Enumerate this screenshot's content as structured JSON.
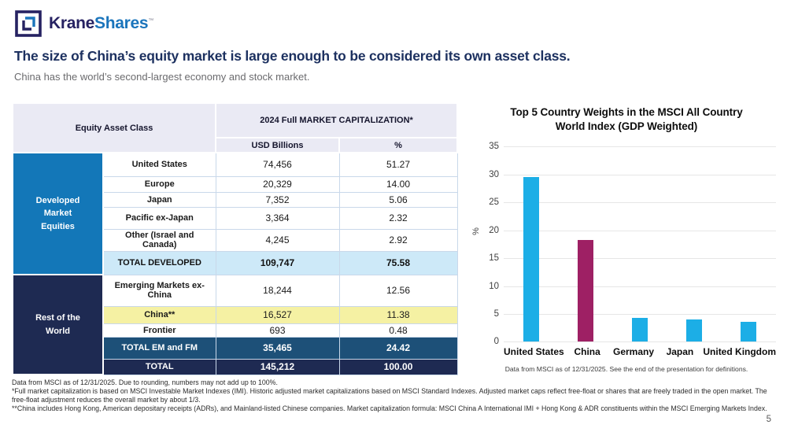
{
  "brand": {
    "name_primary": "Krane",
    "name_secondary": "Shares",
    "trademark": "™"
  },
  "header": {
    "title": "The size of China’s equity market is large enough to be considered its own asset class.",
    "subtitle": "China has the world’s second-largest economy and stock market."
  },
  "table": {
    "header": {
      "asset_class": "Equity Asset Class",
      "market_cap": "2024 Full MARKET CAPITALIZATION*",
      "usd": "USD Billions",
      "pct": "%"
    },
    "groups": [
      {
        "label": "Developed Market Equities",
        "color": "#1377b8",
        "rows": [
          {
            "label": "United States",
            "usd": "74,456",
            "pct": "51.27",
            "style": "normal"
          },
          {
            "label": "Europe",
            "usd": "20,329",
            "pct": "14.00",
            "style": "normal"
          },
          {
            "label": "Japan",
            "usd": "7,352",
            "pct": "5.06",
            "style": "normal"
          },
          {
            "label": "Pacific ex-Japan",
            "usd": "3,364",
            "pct": "2.32",
            "style": "normal"
          },
          {
            "label": "Other (Israel and Canada)",
            "usd": "4,245",
            "pct": "2.92",
            "style": "normal"
          },
          {
            "label": "TOTAL DEVELOPED",
            "usd": "109,747",
            "pct": "75.58",
            "style": "total-light"
          }
        ]
      },
      {
        "label": "Rest of the World",
        "color": "#1e2a52",
        "rows": [
          {
            "label": "Emerging Markets ex-China",
            "usd": "18,244",
            "pct": "12.56",
            "style": "normal"
          },
          {
            "label": "China**",
            "usd": "16,527",
            "pct": "11.38",
            "style": "highlight"
          },
          {
            "label": "Frontier",
            "usd": "693",
            "pct": "0.48",
            "style": "normal"
          },
          {
            "label": "TOTAL EM and FM",
            "usd": "35,465",
            "pct": "24.42",
            "style": "total-steel"
          },
          {
            "label": "TOTAL",
            "usd": "145,212",
            "pct": "100.00",
            "style": "total-navy"
          }
        ]
      }
    ]
  },
  "chart_data": {
    "type": "bar",
    "title": "Top 5 Country Weights in the MSCI All Country World Index (GDP Weighted)",
    "categories": [
      "United States",
      "China",
      "Germany",
      "Japan",
      "United Kingdom"
    ],
    "values": [
      29.5,
      18.3,
      4.3,
      4.0,
      3.6
    ],
    "bar_colors": [
      "#1caee6",
      "#9e2064",
      "#1caee6",
      "#1caee6",
      "#1caee6"
    ],
    "xlabel": "",
    "ylabel": "%",
    "ylim": [
      0,
      35
    ],
    "ytick_step": 5,
    "grid": true,
    "legend": false,
    "footnote": "Data from MSCI as of 12/31/2025. See the end of the presentation for definitions."
  },
  "footnotes": [
    "Data from MSCI as of 12/31/2025. Due to rounding, numbers may not add up to 100%.",
    "*Full market capitalization is based on MSCI Investable Market Indexes (IMI). Historic adjusted market capitalizations based on MSCI Standard Indexes. Adjusted market caps reflect free-float or shares that are freely traded in the open market. The free-float adjustment reduces the overall market by about 1/3.",
    "**China includes Hong Kong, American depositary receipts (ADRs), and Mainland-listed Chinese companies. Market capitalization formula: MSCI China A International IMI + Hong Kong & ADR constituents within the MSCI Emerging Markets Index."
  ],
  "page_number": "5"
}
